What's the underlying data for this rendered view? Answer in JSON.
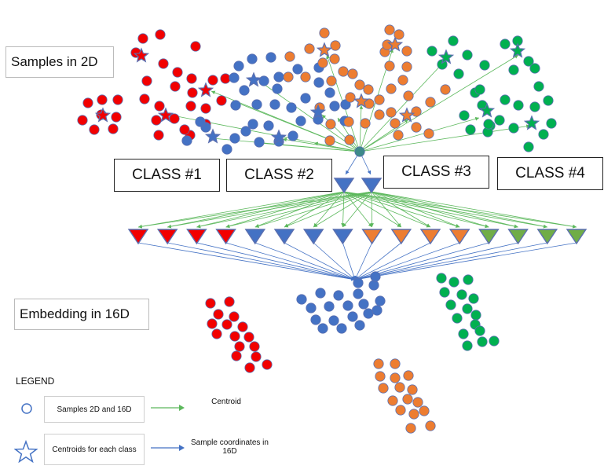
{
  "titles": {
    "samples_2d": "Samples in 2D",
    "embedding_16d": "Embedding in 16D"
  },
  "classes": [
    "CLASS #1",
    "CLASS #2",
    "CLASS #3",
    "CLASS #4"
  ],
  "legend": {
    "title": "LEGEND",
    "samples": "Samples 2D and 16D",
    "centroids": "Centroids for each class",
    "centroid_arrow": "Centroid",
    "sample_arrow": "Sample coordinates in 16D"
  },
  "colors": {
    "red": "#f20000",
    "blue": "#4472c4",
    "orange": "#ed7d31",
    "green": "#00b050",
    "triangle_green": "#70ad47",
    "arrow_green": "#5cb85c",
    "arrow_blue": "#4472c4",
    "outline": "#5b6fb0"
  },
  "embedding_triangle_colors": [
    "red",
    "red",
    "red",
    "red",
    "blue",
    "blue",
    "blue",
    "blue",
    "orange",
    "orange",
    "orange",
    "orange",
    "green",
    "green",
    "green",
    "green"
  ]
}
